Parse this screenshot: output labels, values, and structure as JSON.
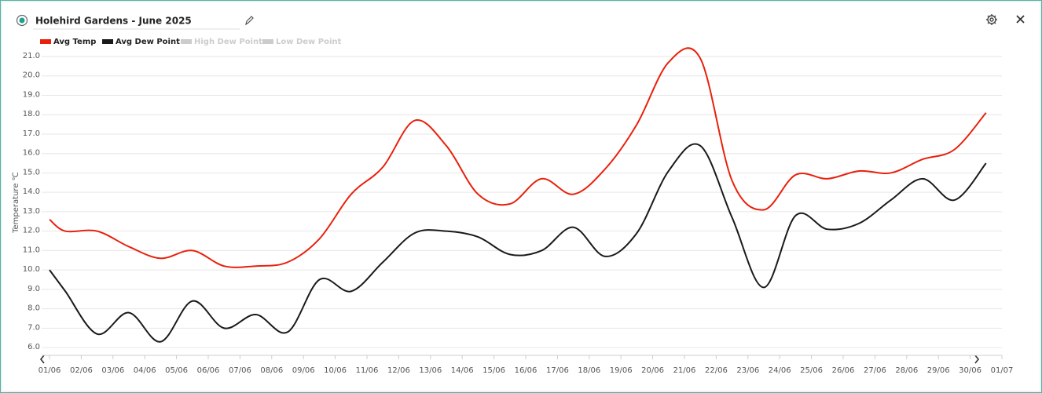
{
  "chart_data": {
    "type": "line",
    "title": "Holehird Gardens - June 2025",
    "y_label": "Temperature ℃",
    "x": [
      0,
      0.5,
      1.5,
      2.5,
      3.5,
      4.5,
      5.5,
      6.5,
      7.5,
      8.5,
      9.5,
      10.5,
      11.5,
      12.5,
      13.5,
      14.5,
      15.5,
      16.5,
      17.5,
      18.5,
      19.5,
      20.5,
      21.5,
      22.5,
      23.5,
      24.5,
      25.5,
      26.5,
      27.5,
      28.5,
      29.5
    ],
    "series": [
      {
        "name": "Avg Temp",
        "color": "#e8210c",
        "visible": true,
        "values": [
          12.6,
          12.0,
          12.0,
          11.2,
          10.6,
          11.0,
          10.2,
          10.2,
          10.4,
          11.6,
          13.9,
          15.3,
          17.7,
          16.4,
          13.9,
          13.4,
          14.7,
          13.9,
          15.2,
          17.5,
          20.7,
          20.9,
          14.6,
          13.1,
          14.9,
          14.7,
          15.1,
          15.0,
          15.7,
          16.2,
          18.1
        ]
      },
      {
        "name": "Avg Dew Point",
        "color": "#1a1a1a",
        "visible": true,
        "values": [
          10.0,
          8.9,
          6.7,
          7.8,
          6.3,
          8.4,
          7.0,
          7.7,
          6.8,
          9.5,
          8.9,
          10.4,
          11.9,
          12.0,
          11.7,
          10.8,
          11.0,
          12.2,
          10.7,
          11.9,
          15.1,
          16.4,
          12.7,
          9.1,
          12.8,
          12.1,
          12.4,
          13.6,
          14.7,
          13.6,
          15.5
        ]
      },
      {
        "name": "High Dew Point",
        "color": "#cccccc",
        "visible": false
      },
      {
        "name": "Low Dew Point",
        "color": "#cccccc",
        "visible": false
      }
    ],
    "xlim": [
      0,
      30
    ],
    "xticks": [
      {
        "value": 0,
        "label": "01/06"
      },
      {
        "value": 1,
        "label": "02/06"
      },
      {
        "value": 2,
        "label": "03/06"
      },
      {
        "value": 3,
        "label": "04/06"
      },
      {
        "value": 4,
        "label": "05/06"
      },
      {
        "value": 5,
        "label": "06/06"
      },
      {
        "value": 6,
        "label": "07/06"
      },
      {
        "value": 7,
        "label": "08/06"
      },
      {
        "value": 8,
        "label": "09/06"
      },
      {
        "value": 9,
        "label": "10/06"
      },
      {
        "value": 10,
        "label": "11/06"
      },
      {
        "value": 11,
        "label": "12/06"
      },
      {
        "value": 12,
        "label": "13/06"
      },
      {
        "value": 13,
        "label": "14/06"
      },
      {
        "value": 14,
        "label": "15/06"
      },
      {
        "value": 15,
        "label": "16/06"
      },
      {
        "value": 16,
        "label": "17/06"
      },
      {
        "value": 17,
        "label": "18/06"
      },
      {
        "value": 18,
        "label": "19/06"
      },
      {
        "value": 19,
        "label": "20/06"
      },
      {
        "value": 20,
        "label": "21/06"
      },
      {
        "value": 21,
        "label": "22/06"
      },
      {
        "value": 22,
        "label": "23/06"
      },
      {
        "value": 23,
        "label": "24/06"
      },
      {
        "value": 24,
        "label": "25/06"
      },
      {
        "value": 25,
        "label": "26/06"
      },
      {
        "value": 26,
        "label": "27/06"
      },
      {
        "value": 27,
        "label": "28/06"
      },
      {
        "value": 28,
        "label": "29/06"
      },
      {
        "value": 29,
        "label": "30/06"
      },
      {
        "value": 30,
        "label": "01/07"
      }
    ],
    "ylim": [
      5.6,
      21
    ],
    "yticks": [
      {
        "value": 6,
        "label": "6.0"
      },
      {
        "value": 7,
        "label": "7.0"
      },
      {
        "value": 8,
        "label": "8.0"
      },
      {
        "value": 9,
        "label": "9.0"
      },
      {
        "value": 10,
        "label": "10.0"
      },
      {
        "value": 11,
        "label": "11.0"
      },
      {
        "value": 12,
        "label": "12.0"
      },
      {
        "value": 13,
        "label": "13.0"
      },
      {
        "value": 14,
        "label": "14.0"
      },
      {
        "value": 15,
        "label": "15.0"
      },
      {
        "value": 16,
        "label": "16.0"
      },
      {
        "value": 17,
        "label": "17.0"
      },
      {
        "value": 18,
        "label": "18.0"
      },
      {
        "value": 19,
        "label": "19.0"
      },
      {
        "value": 20,
        "label": "20.0"
      },
      {
        "value": 21,
        "label": "21.0"
      }
    ],
    "grid": true,
    "legend": "top-left"
  }
}
